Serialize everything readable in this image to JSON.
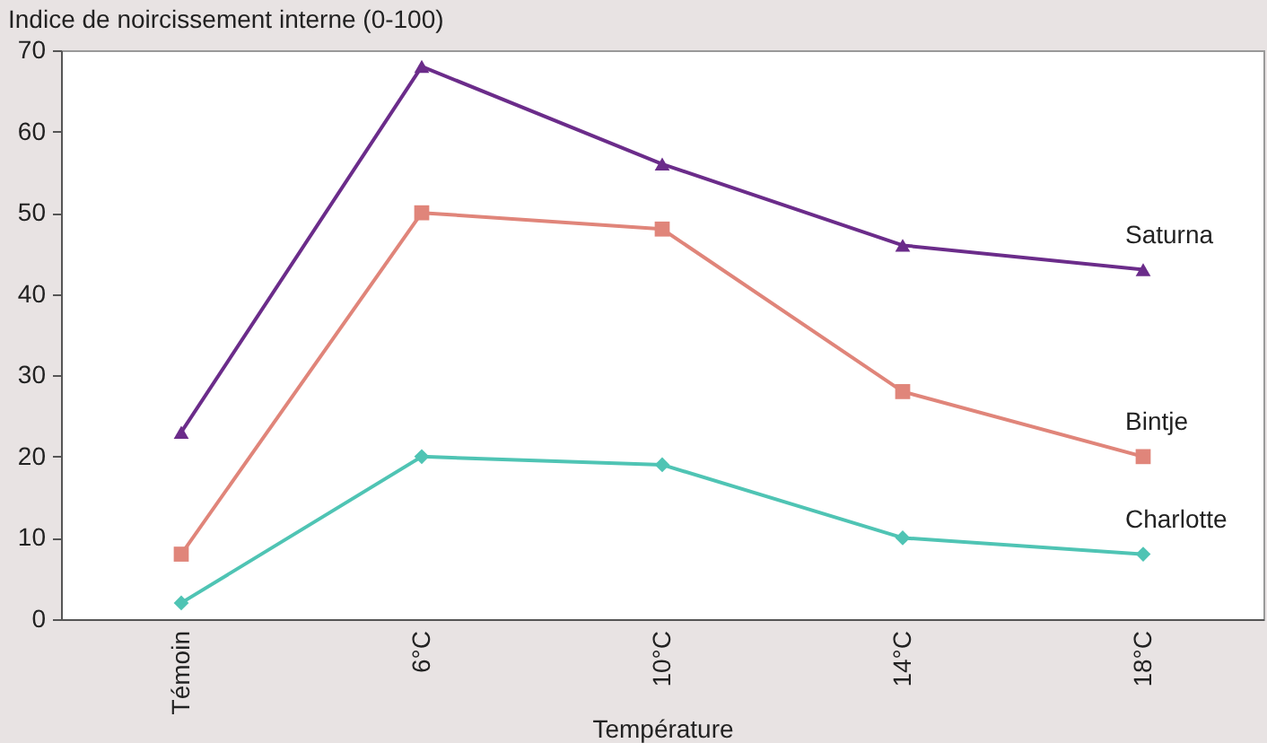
{
  "chart_data": {
    "type": "line",
    "ylabel": "Indice de noircissement interne (0-100)",
    "xlabel": "Température",
    "categories": [
      "Témoin",
      "6°C",
      "10°C",
      "14°C",
      "18°C"
    ],
    "ylim": [
      0,
      70
    ],
    "yticks": [
      0,
      10,
      20,
      30,
      40,
      50,
      60,
      70
    ],
    "grid": false,
    "legend": false,
    "line_style": "solid",
    "series": [
      {
        "name": "Saturna",
        "color": "#6b2c8a",
        "marker": "triangle",
        "values": [
          23,
          68,
          56,
          46,
          43
        ]
      },
      {
        "name": "Bintje",
        "color": "#e0857a",
        "marker": "square",
        "values": [
          8,
          50,
          48,
          28,
          20
        ]
      },
      {
        "name": "Charlotte",
        "color": "#4fc4b4",
        "marker": "diamond",
        "values": [
          2,
          20,
          19,
          10,
          8
        ]
      }
    ]
  }
}
